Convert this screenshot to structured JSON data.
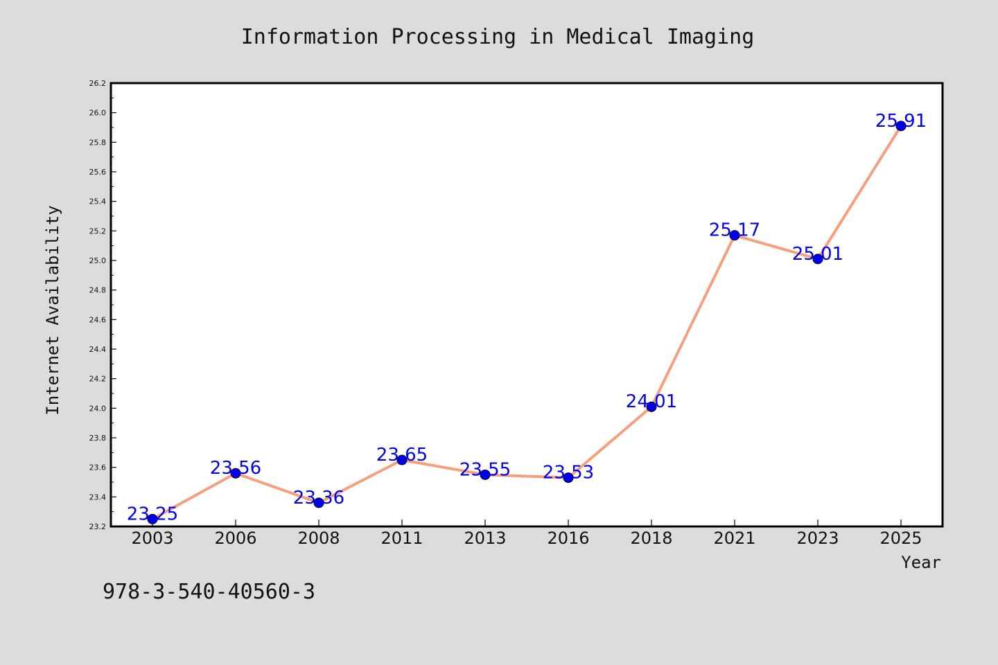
{
  "colors": {
    "background": "#dcdcdc",
    "plot_background": "#ffffff",
    "line": "#f4a07c",
    "marker": "#0000ee",
    "data_label": "#0000ee"
  },
  "footer": {
    "isbn": "978-3-540-40560-3"
  },
  "chart_data": {
    "type": "line",
    "title": "Information Processing in Medical Imaging",
    "xlabel": "Year",
    "ylabel": "Internet Availability",
    "categories": [
      "2003",
      "2006",
      "2008",
      "2011",
      "2013",
      "2016",
      "2018",
      "2021",
      "2023",
      "2025"
    ],
    "series": [
      {
        "values": [
          23.25,
          23.56,
          23.36,
          23.65,
          23.55,
          23.53,
          24.01,
          25.17,
          25.01,
          25.91
        ]
      }
    ],
    "data_labels": [
      "23.25",
      "23.56",
      "23.36",
      "23.65",
      "23.55",
      "23.53",
      "24.01",
      "25.17",
      "25.01",
      "25.91"
    ],
    "ylim": [
      23.2,
      26.2
    ],
    "yticks": [
      "23.2",
      "23.4",
      "23.6",
      "23.8",
      "24.0",
      "24.2",
      "24.4",
      "24.6",
      "24.8",
      "25.0",
      "25.2",
      "25.4",
      "25.6",
      "25.8",
      "26.0",
      "26.2"
    ],
    "grid": false,
    "legend": "none"
  }
}
